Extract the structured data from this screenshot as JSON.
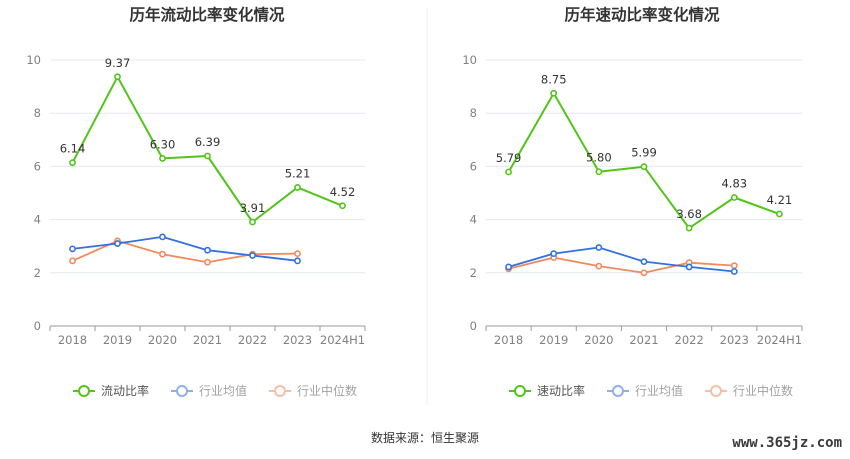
{
  "chart_data": [
    {
      "type": "line",
      "title": "历年流动比率变化情况",
      "categories": [
        "2018",
        "2019",
        "2020",
        "2021",
        "2022",
        "2023",
        "2024H1"
      ],
      "ylim": [
        0,
        10
      ],
      "yticks": [
        0,
        2,
        4,
        6,
        8,
        10
      ],
      "grid": true,
      "legend_position": "bottom",
      "series": [
        {
          "name": "流动比率",
          "color": "#52c41a",
          "labels": true,
          "values": [
            6.14,
            9.37,
            6.3,
            6.39,
            3.91,
            5.21,
            4.52
          ]
        },
        {
          "name": "行业均值",
          "color": "#3370e0",
          "labels": false,
          "values": [
            2.9,
            3.1,
            3.35,
            2.85,
            2.65,
            2.45,
            null
          ]
        },
        {
          "name": "行业中位数",
          "color": "#f08a5d",
          "labels": false,
          "values": [
            2.45,
            3.2,
            2.7,
            2.4,
            2.7,
            2.72,
            null
          ]
        }
      ]
    },
    {
      "type": "line",
      "title": "历年速动比率变化情况",
      "categories": [
        "2018",
        "2019",
        "2020",
        "2021",
        "2022",
        "2023",
        "2024H1"
      ],
      "ylim": [
        0,
        10
      ],
      "yticks": [
        0,
        2,
        4,
        6,
        8,
        10
      ],
      "grid": true,
      "legend_position": "bottom",
      "series": [
        {
          "name": "速动比率",
          "color": "#52c41a",
          "labels": true,
          "values": [
            5.79,
            8.75,
            5.8,
            5.99,
            3.68,
            4.83,
            4.21
          ]
        },
        {
          "name": "行业均值",
          "color": "#3370e0",
          "labels": false,
          "values": [
            2.22,
            2.72,
            2.95,
            2.42,
            2.22,
            2.05,
            null
          ]
        },
        {
          "name": "行业中位数",
          "color": "#f08a5d",
          "labels": false,
          "values": [
            2.15,
            2.57,
            2.25,
            2.0,
            2.38,
            2.27,
            null
          ]
        }
      ]
    }
  ],
  "footer": {
    "source": "数据来源：恒生聚源",
    "watermark": "www.365jz.com"
  }
}
